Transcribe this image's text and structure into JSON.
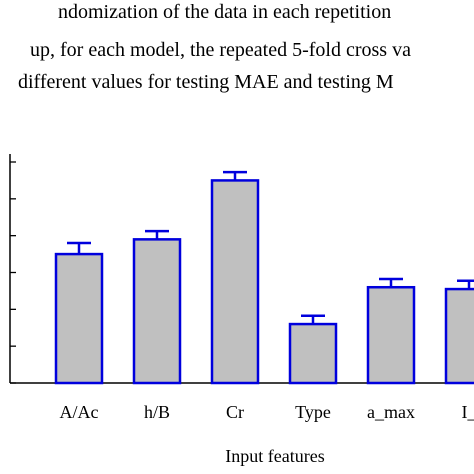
{
  "caption": {
    "lines": [
      "ndomization of the data in each repetition",
      "up, for each model, the repeated 5-fold cross va",
      "different values for testing MAE and testing M"
    ]
  },
  "chart_data": {
    "type": "bar",
    "categories": [
      "A/Ac",
      "h/B",
      "Cr",
      "Type",
      "a_max",
      "I_"
    ],
    "values": [
      0.7,
      0.78,
      1.1,
      0.32,
      0.52,
      0.51
    ],
    "errors": [
      0.06,
      0.045,
      0.045,
      0.045,
      0.045,
      0.045
    ],
    "xlabel": "Input features",
    "ylim": [
      0,
      1.2
    ],
    "ytick_count": 7,
    "bar_fill": "#c0c0c0",
    "bar_edge": "#0000dd",
    "error_color": "#0000dd",
    "grid": false
  }
}
